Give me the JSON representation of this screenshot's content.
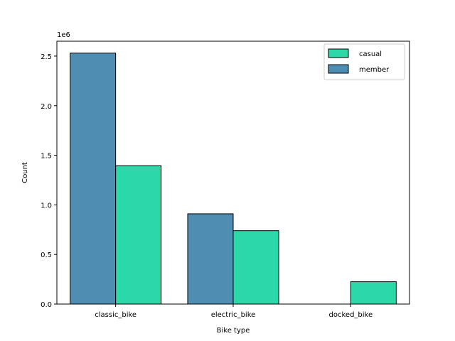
{
  "chart_data": {
    "type": "bar",
    "categories": [
      "classic_bike",
      "electric_bike",
      "docked_bike"
    ],
    "series": [
      {
        "name": "member",
        "color": "#4f8db3",
        "values": [
          2530000,
          910000,
          0
        ]
      },
      {
        "name": "casual",
        "color": "#2ad8a8",
        "values": [
          1395000,
          740000,
          225000
        ]
      }
    ],
    "legend_order": [
      "casual",
      "member"
    ],
    "xlabel": "Bike type",
    "ylabel": "Count",
    "y_offset_text": "1e6",
    "ylim": [
      0,
      2650000
    ],
    "y_ticks": [
      0,
      500000,
      1000000,
      1500000,
      2000000,
      2500000
    ],
    "y_tick_labels": [
      "0.0",
      "0.5",
      "1.0",
      "1.5",
      "2.0",
      "2.5"
    ],
    "legend_position": "top-right",
    "grid": false
  }
}
